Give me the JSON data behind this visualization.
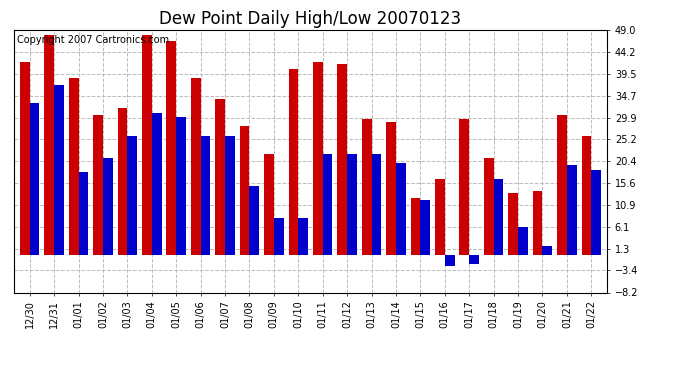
{
  "title": "Dew Point Daily High/Low 20070123",
  "copyright": "Copyright 2007 Cartronics.com",
  "labels": [
    "12/30",
    "12/31",
    "01/01",
    "01/02",
    "01/03",
    "01/04",
    "01/05",
    "01/06",
    "01/07",
    "01/08",
    "01/09",
    "01/10",
    "01/11",
    "01/12",
    "01/13",
    "01/14",
    "01/15",
    "01/16",
    "01/17",
    "01/18",
    "01/19",
    "01/20",
    "01/21",
    "01/22"
  ],
  "high": [
    42.0,
    48.0,
    38.5,
    30.5,
    32.0,
    48.0,
    46.5,
    38.5,
    34.0,
    28.0,
    22.0,
    40.5,
    42.0,
    41.5,
    29.5,
    29.0,
    12.5,
    16.5,
    29.5,
    21.0,
    13.5,
    14.0,
    30.5,
    26.0
  ],
  "low": [
    33.0,
    37.0,
    18.0,
    21.0,
    26.0,
    31.0,
    30.0,
    26.0,
    26.0,
    15.0,
    8.0,
    8.0,
    22.0,
    22.0,
    22.0,
    20.0,
    12.0,
    -2.5,
    -2.0,
    16.5,
    6.0,
    2.0,
    19.5,
    18.5
  ],
  "ylim": [
    -8.2,
    49.0
  ],
  "yticks": [
    -8.2,
    -3.4,
    1.3,
    6.1,
    10.9,
    15.6,
    20.4,
    25.2,
    29.9,
    34.7,
    39.5,
    44.2,
    49.0
  ],
  "bar_width": 0.4,
  "high_color": "#cc0000",
  "low_color": "#0000cc",
  "bg_color": "#ffffff",
  "grid_color": "#bbbbbb",
  "title_fontsize": 12,
  "tick_fontsize": 7,
  "copyright_fontsize": 7
}
